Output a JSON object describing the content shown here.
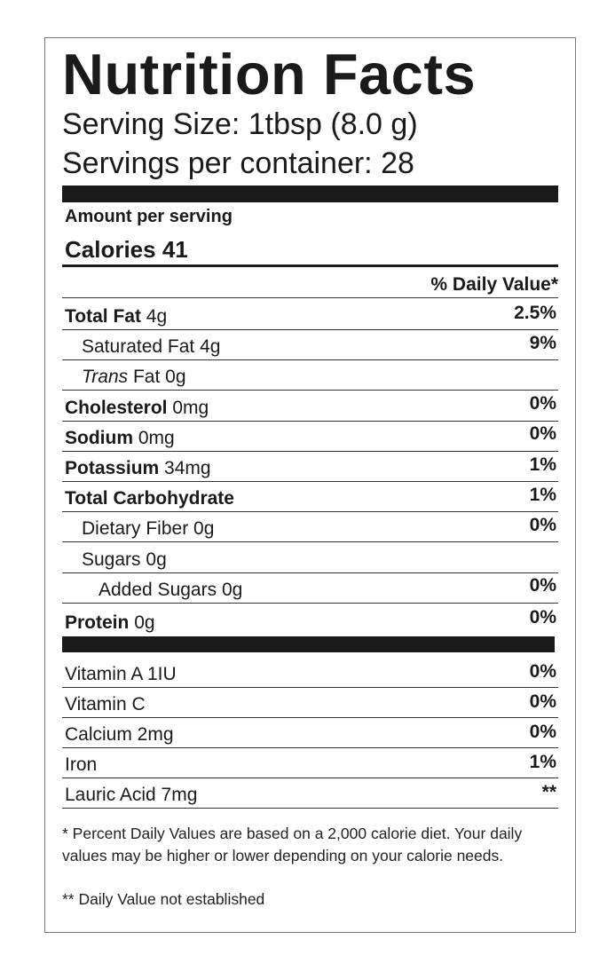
{
  "title": "Nutrition Facts",
  "serving_size": "Serving Size: 1tbsp (8.0 g)",
  "servings_per_container": "Servings per container: 28",
  "amount_per_serving": "Amount per serving",
  "calories": "Calories 41",
  "daily_value_header": "% Daily Value*",
  "nutrients": [
    {
      "name": "Total Fat",
      "amount": "4g",
      "dv": "2.5%",
      "bold": true,
      "indent": 0
    },
    {
      "name": "Saturated Fat",
      "amount": "4g",
      "dv": "9%",
      "bold": false,
      "indent": 1
    },
    {
      "name": "Trans",
      "name_suffix": "Fat",
      "amount": "0g",
      "dv": "",
      "bold": false,
      "indent": 1,
      "italic": true
    },
    {
      "name": "Cholesterol",
      "amount": "0mg",
      "dv": "0%",
      "bold": true,
      "indent": 0
    },
    {
      "name": "Sodium",
      "amount": "0mg",
      "dv": "0%",
      "bold": true,
      "indent": 0
    },
    {
      "name": "Potassium",
      "amount": "34mg",
      "dv": "1%",
      "bold": true,
      "indent": 0
    },
    {
      "name": "Total Carbohydrate",
      "amount": "",
      "dv": "1%",
      "bold": true,
      "indent": 0
    },
    {
      "name": "Dietary Fiber",
      "amount": "0g",
      "dv": "0%",
      "bold": false,
      "indent": 1
    },
    {
      "name": "Sugars",
      "amount": "0g",
      "dv": "",
      "bold": false,
      "indent": 1
    },
    {
      "name": "Added Sugars",
      "amount": "0g",
      "dv": "0%",
      "bold": false,
      "indent": 2
    },
    {
      "name": "Protein",
      "amount": "0g",
      "dv": "0%",
      "bold": true,
      "indent": 0
    }
  ],
  "vitamins": [
    {
      "name": "Vitamin A 1IU",
      "dv": "0%"
    },
    {
      "name": "Vitamin C",
      "dv": "0%"
    },
    {
      "name": "Calcium 2mg",
      "dv": "0%"
    },
    {
      "name": "Iron",
      "dv": "1%"
    },
    {
      "name": "Lauric Acid 7mg",
      "dv": "**"
    }
  ],
  "footnote_1": "* Percent Daily Values are based on a 2,000 calorie diet. Your daily values may be higher or lower depending on your calorie needs.",
  "footnote_2": "** Daily Value not established"
}
